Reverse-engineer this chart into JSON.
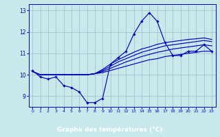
{
  "title": "Graphe des températures (°C)",
  "bg_color": "#c8e8ec",
  "plot_bg": "#c8e8ec",
  "line_color": "#0000bb",
  "grid_color": "#99bbcc",
  "xlabel_bg": "#2255aa",
  "xlabel_fg": "#ffffff",
  "xlim": [
    -0.5,
    23.5
  ],
  "ylim": [
    8.5,
    13.3
  ],
  "xticks": [
    0,
    1,
    2,
    3,
    4,
    5,
    6,
    7,
    8,
    9,
    10,
    11,
    12,
    13,
    14,
    15,
    16,
    17,
    18,
    19,
    20,
    21,
    22,
    23
  ],
  "yticks": [
    9,
    10,
    11,
    12,
    13
  ],
  "series_main": [
    10.2,
    9.9,
    9.8,
    9.9,
    9.5,
    9.4,
    9.2,
    8.7,
    8.7,
    8.9,
    10.5,
    10.8,
    11.1,
    11.9,
    12.5,
    12.9,
    12.5,
    11.5,
    10.9,
    10.9,
    11.1,
    11.1,
    11.4,
    11.1
  ],
  "series_reg1": [
    10.15,
    10.0,
    10.0,
    10.0,
    10.0,
    10.0,
    10.0,
    10.0,
    10.05,
    10.1,
    10.2,
    10.3,
    10.4,
    10.5,
    10.6,
    10.7,
    10.75,
    10.85,
    10.9,
    10.95,
    11.0,
    11.05,
    11.1,
    11.1
  ],
  "series_reg2": [
    10.15,
    10.0,
    10.0,
    10.0,
    10.0,
    10.0,
    10.0,
    10.0,
    10.05,
    10.15,
    10.3,
    10.45,
    10.6,
    10.72,
    10.85,
    10.95,
    11.05,
    11.12,
    11.2,
    11.25,
    11.3,
    11.35,
    11.4,
    11.35
  ],
  "series_reg3": [
    10.15,
    10.0,
    10.0,
    10.0,
    10.0,
    10.0,
    10.0,
    10.0,
    10.05,
    10.2,
    10.4,
    10.6,
    10.75,
    10.9,
    11.05,
    11.15,
    11.25,
    11.35,
    11.4,
    11.45,
    11.5,
    11.55,
    11.6,
    11.55
  ],
  "series_reg4": [
    10.15,
    10.0,
    10.0,
    10.0,
    10.0,
    10.0,
    10.0,
    10.0,
    10.05,
    10.25,
    10.5,
    10.7,
    10.88,
    11.05,
    11.2,
    11.3,
    11.42,
    11.5,
    11.55,
    11.6,
    11.65,
    11.68,
    11.72,
    11.65
  ]
}
